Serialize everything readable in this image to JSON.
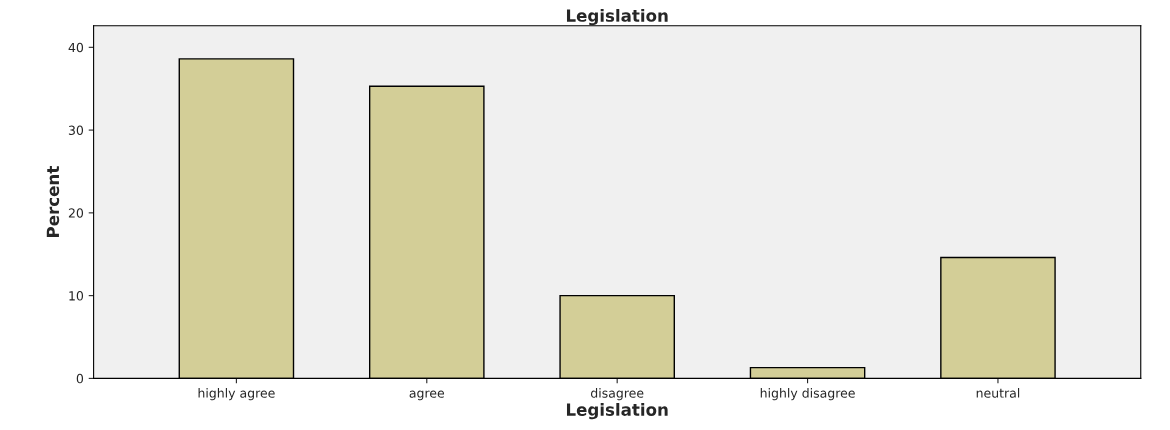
{
  "chart_data": {
    "type": "bar",
    "title": "Legislation",
    "xlabel": "Legislation",
    "ylabel": "Percent",
    "categories": [
      "highly agree",
      "agree",
      "disagree",
      "highly disagree",
      "neutral"
    ],
    "values": [
      38.6,
      35.3,
      10.0,
      1.3,
      14.6
    ],
    "color": "#d3ce97",
    "ylim": [
      0,
      42.6
    ],
    "yticks": [
      0,
      10,
      20,
      30,
      40
    ],
    "grid": false
  }
}
